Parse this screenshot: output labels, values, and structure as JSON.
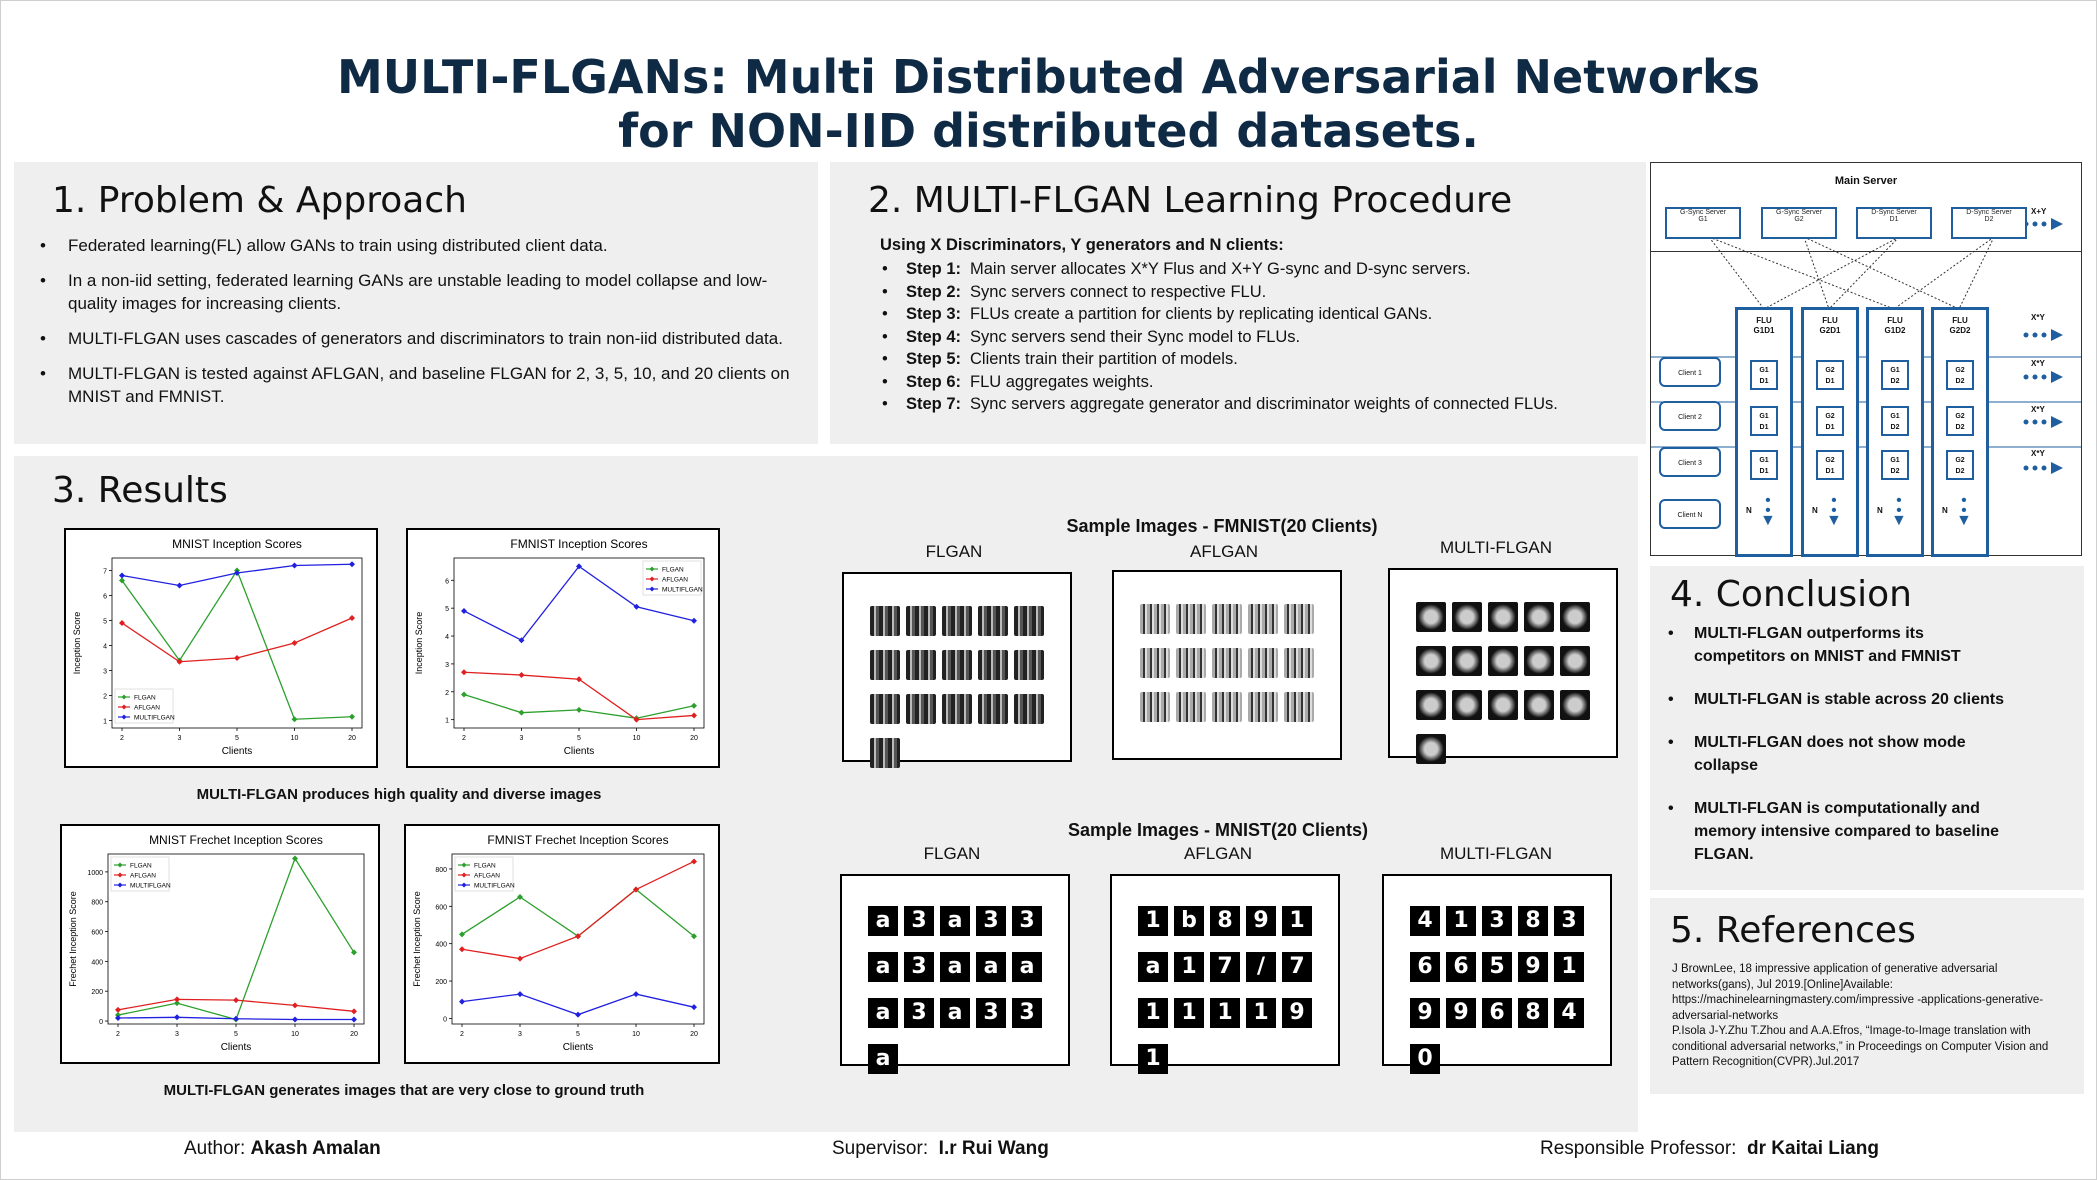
{
  "title": {
    "line1": "MULTI-FLGANs: Multi Distributed Adversarial Networks",
    "line2": "for NON-IID distributed datasets."
  },
  "section1": {
    "heading": "1. Problem & Approach",
    "bullets": [
      "Federated learning(FL) allow GANs to train using distributed client data.",
      "In a non-iid setting, federated learning GANs are unstable leading to model collapse and low-quality images for increasing clients.",
      "MULTI-FLGAN uses cascades of generators and discriminators to train non-iid distributed data.",
      "MULTI-FLGAN is tested against AFLGAN, and baseline FLGAN for 2, 3, 5, 10, and 20 clients on MNIST and FMNIST."
    ]
  },
  "section2": {
    "heading": "2. MULTI-FLGAN Learning Procedure",
    "intro": "Using X Discriminators, Y generators and N clients:",
    "steps": [
      {
        "label": "Step 1:",
        "text": "Main server allocates X*Y Flus and X+Y G-sync and D-sync servers."
      },
      {
        "label": "Step 2:",
        "text": "Sync servers connect to respective FLU."
      },
      {
        "label": "Step 3:",
        "text": "FLUs create a partition for clients by replicating identical GANs."
      },
      {
        "label": "Step 4:",
        "text": "Sync servers send their Sync model to FLUs."
      },
      {
        "label": "Step 5:",
        "text": "Clients train their partition of models."
      },
      {
        "label": "Step 6:",
        "text": "FLU aggregates weights."
      },
      {
        "label": "Step 7:",
        "text": "Sync servers aggregate generator and discriminator weights of connected FLUs."
      }
    ]
  },
  "diagram": {
    "main_server": "Main Server",
    "sync_servers": [
      {
        "line1": "G-Sync Server",
        "line2": "G1"
      },
      {
        "line1": "G-Sync Server",
        "line2": "G2"
      },
      {
        "line1": "D-Sync Server",
        "line2": "D1"
      },
      {
        "line1": "D-Sync Server",
        "line2": "D2"
      }
    ],
    "xy_top": "X+Y",
    "xy_row": "X*Y",
    "flus": [
      {
        "line1": "FLU",
        "line2": "G1D1",
        "cell1": "G1",
        "cell2": "D1"
      },
      {
        "line1": "FLU",
        "line2": "G2D1",
        "cell1": "G2",
        "cell2": "D1"
      },
      {
        "line1": "FLU",
        "line2": "G1D2",
        "cell1": "G1",
        "cell2": "D2"
      },
      {
        "line1": "FLU",
        "line2": "G2D2",
        "cell1": "G2",
        "cell2": "D2"
      }
    ],
    "clients": [
      "Client 1",
      "Client 2",
      "Client 3",
      "Client N"
    ],
    "n_label": "N"
  },
  "section3": {
    "heading": "3. Results",
    "caption_top": "MULTI-FLGAN produces high quality and diverse images",
    "caption_bottom": "MULTI-FLGAN generates images that are very close to ground truth",
    "fmnist_samples_title": "Sample Images - FMNIST(20 Clients)",
    "mnist_samples_title": "Sample Images - MNIST(20 Clients)",
    "sample_labels": [
      "FLGAN",
      "AFLGAN",
      "MULTI-FLGAN"
    ],
    "mnist_digits": {
      "flgan": [
        "a",
        "3",
        "a",
        "3",
        "3",
        "a",
        "3",
        "a",
        "a",
        "a",
        "a",
        "3",
        "a",
        "3",
        "3",
        "a"
      ],
      "aflgan": [
        "1",
        "b",
        "8",
        "9",
        "1",
        "a",
        "1",
        "7",
        "/",
        "7",
        "1",
        "1",
        "1",
        "1",
        "9",
        "1"
      ],
      "multiflgan": [
        "4",
        "1",
        "3",
        "8",
        "3",
        "6",
        "6",
        "5",
        "9",
        "1",
        "9",
        "9",
        "6",
        "8",
        "4",
        "0"
      ]
    }
  },
  "chart_data": [
    {
      "type": "line",
      "title": "MNIST Inception Scores",
      "xlabel": "Clients",
      "ylabel": "Inception Score",
      "categories": [
        "2",
        "3",
        "5",
        "10",
        "20"
      ],
      "yticks": [
        1,
        2,
        3,
        4,
        5,
        6,
        7
      ],
      "ylim": [
        0.7,
        7.5
      ],
      "legend": "bottom-left",
      "series": [
        {
          "name": "FLGAN",
          "color": "#2ca02c",
          "values": [
            6.6,
            3.4,
            7.0,
            1.05,
            1.15
          ]
        },
        {
          "name": "AFLGAN",
          "color": "#e02020",
          "values": [
            4.9,
            3.35,
            3.5,
            4.1,
            5.1
          ]
        },
        {
          "name": "MULTIFLGAN",
          "color": "#2020e0",
          "values": [
            6.8,
            6.4,
            6.9,
            7.2,
            7.25
          ]
        }
      ]
    },
    {
      "type": "line",
      "title": "FMNIST Inception Scores",
      "xlabel": "Clients",
      "ylabel": "Inception Score",
      "categories": [
        "2",
        "3",
        "5",
        "10",
        "20"
      ],
      "yticks": [
        1,
        2,
        3,
        4,
        5,
        6
      ],
      "ylim": [
        0.7,
        6.8
      ],
      "legend": "top-right",
      "series": [
        {
          "name": "FLGAN",
          "color": "#2ca02c",
          "values": [
            1.9,
            1.25,
            1.35,
            1.05,
            1.5
          ]
        },
        {
          "name": "AFLGAN",
          "color": "#e02020",
          "values": [
            2.7,
            2.6,
            2.45,
            1.0,
            1.15
          ]
        },
        {
          "name": "MULTIFLGAN",
          "color": "#2020e0",
          "values": [
            4.9,
            3.85,
            6.5,
            5.05,
            4.55
          ]
        }
      ]
    },
    {
      "type": "line",
      "title": "MNIST Frechet Inception Scores",
      "xlabel": "Clients",
      "ylabel": "Frechet Inception Score",
      "categories": [
        "2",
        "3",
        "5",
        "10",
        "20"
      ],
      "yticks": [
        0,
        200,
        400,
        600,
        800,
        1000
      ],
      "ylim": [
        -20,
        1120
      ],
      "legend": "top-left",
      "series": [
        {
          "name": "FLGAN",
          "color": "#2ca02c",
          "values": [
            40,
            120,
            10,
            1090,
            460
          ]
        },
        {
          "name": "AFLGAN",
          "color": "#e02020",
          "values": [
            75,
            145,
            140,
            105,
            65
          ]
        },
        {
          "name": "MULTIFLGAN",
          "color": "#2020e0",
          "values": [
            20,
            25,
            15,
            10,
            10
          ]
        }
      ]
    },
    {
      "type": "line",
      "title": "FMNIST Frechet Inception Scores",
      "xlabel": "Clients",
      "ylabel": "Frechet Inception Score",
      "categories": [
        "2",
        "3",
        "5",
        "10",
        "20"
      ],
      "yticks": [
        0,
        200,
        400,
        600,
        800
      ],
      "ylim": [
        -30,
        880
      ],
      "legend": "top-left",
      "series": [
        {
          "name": "FLGAN",
          "color": "#2ca02c",
          "values": [
            450,
            650,
            440,
            690,
            440
          ]
        },
        {
          "name": "AFLGAN",
          "color": "#e02020",
          "values": [
            370,
            320,
            440,
            690,
            840
          ]
        },
        {
          "name": "MULTIFLGAN",
          "color": "#2020e0",
          "values": [
            90,
            130,
            20,
            130,
            60
          ]
        }
      ]
    }
  ],
  "section4": {
    "heading": "4. Conclusion",
    "bullets": [
      "MULTI-FLGAN outperforms its competitors on MNIST and FMNIST",
      "MULTI-FLGAN is stable across 20 clients",
      "MULTI-FLGAN does not show mode collapse",
      "MULTI-FLGAN is computationally and memory intensive compared to baseline FLGAN."
    ]
  },
  "section5": {
    "heading": "5. References",
    "refs": [
      "J BrownLee, 18 impressive application of generative adversarial networks(gans), Jul 2019.[Online]Available: https://machinelearningmastery.com/impressive -applications-generative-adversarial-networks",
      "P.Isola J-Y.Zhu T.Zhou and A.A.Efros, “Image-to-Image translation with conditional adversarial networks,” in Proceedings on Computer Vision and Pattern Recognition(CVPR).Jul.2017"
    ]
  },
  "footer": {
    "author_label": "Author:",
    "author": "Akash Amalan",
    "supervisor_label": "Supervisor:",
    "supervisor": "I.r Rui Wang",
    "professor_label": "Responsible Professor:",
    "professor": "dr Kaitai Liang"
  }
}
